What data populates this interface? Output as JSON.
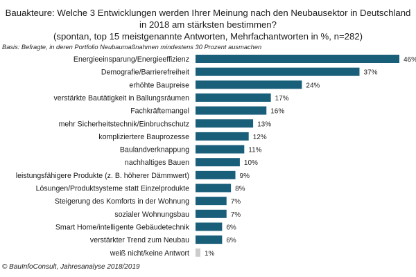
{
  "chart_data": {
    "type": "bar",
    "orientation": "horizontal",
    "title": "Bauakteure: Welche 3 Entwicklungen werden Ihrer Meinung nach den Neubausektor in Deutschland in 2018 am stärksten bestimmen?",
    "title_lines": [
      "Bauakteure: Welche 3 Entwicklungen  werden Ihrer Meinung nach den Neubausektor in Deutschland",
      "in 2018 am stärksten bestimmen?",
      "(spontan, top 15 meistgenannte  Antworten, Mehrfachantworten  in %, n=282)"
    ],
    "subtitle": "(spontan, top 15 meistgenannte Antworten, Mehrfachantworten in %, n=282)",
    "basis_note": "Basis: Befragte, in deren Portfolio Neubaumaßnahmen mindestens 30 Prozent ausmachen",
    "source": "© BauInfoConsult, Jahresanalyse 2018/2019",
    "xlabel": "",
    "ylabel": "",
    "unit": "%",
    "xlim": [
      0,
      46
    ],
    "grid": false,
    "legend": "none",
    "categories": [
      "Energieeinsparung/Energieeffizienz",
      "Demografie/Barrierefreiheit",
      "erhöhte Baupreise",
      "verstärkte Bautätigkeit in Ballungsräumen",
      "Fachkräftemangel",
      "mehr Sicherheitstechnik/Einbruchschutz",
      "kompliziertere Bauprozesse",
      "Baulandverknappung",
      "nachhaltiges Bauen",
      "leistungsfähigere Produkte (z. B. höherer Dämmwert)",
      "Lösungen/Produktsysteme statt Einzelprodukte",
      "Steigerung des Komforts in der Wohnung",
      "sozialer Wohnungsbau",
      "Smart Home/intelligente Gebäudetechnik",
      "verstärkter Trend zum Neubau",
      "weiß nicht/keine Antwort"
    ],
    "values": [
      46,
      37,
      24,
      17,
      16,
      13,
      12,
      11,
      10,
      9,
      8,
      7,
      7,
      6,
      6,
      1
    ],
    "value_labels": [
      "46%",
      "37%",
      "24%",
      "17%",
      "16%",
      "13%",
      "12%",
      "11%",
      "10%",
      "9%",
      "8%",
      "7%",
      "7%",
      "6%",
      "6%",
      "1%"
    ],
    "bar_colors": {
      "default": "#1a5f7a",
      "no_answer": "#cccccc"
    }
  }
}
